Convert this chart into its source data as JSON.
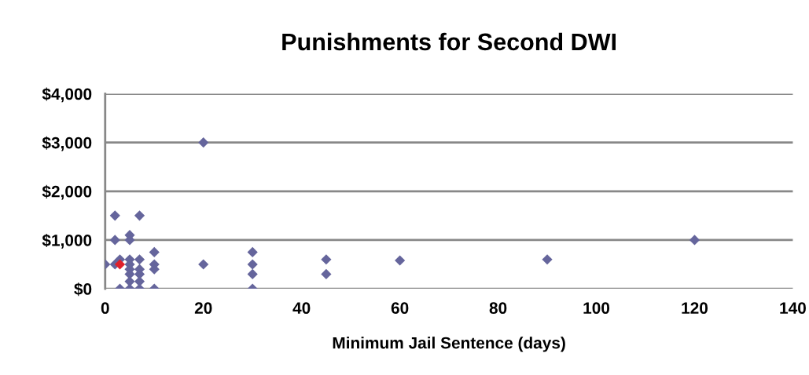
{
  "chart_data": {
    "type": "scatter",
    "title": "Punishments for Second DWI",
    "xlabel": "Minimum Jail Sentence (days)",
    "xlim": [
      0,
      140
    ],
    "xticks": [
      0,
      20,
      40,
      60,
      80,
      100,
      120,
      140
    ],
    "ylim": [
      0,
      4000
    ],
    "yticks": [
      {
        "value": 0,
        "label": "$0"
      },
      {
        "value": 1000,
        "label": "$1,000"
      },
      {
        "value": 2000,
        "label": "$2,000"
      },
      {
        "value": 3000,
        "label": "$3,000"
      },
      {
        "value": 4000,
        "label": "$4,000"
      }
    ],
    "grid": "y",
    "marker": "diamond",
    "legend": false,
    "series": [
      {
        "color": "#65659c",
        "x": [
          2,
          7,
          2,
          5,
          5,
          0,
          2,
          3,
          3,
          5,
          5,
          5,
          5,
          5,
          5,
          7,
          7,
          7,
          7,
          7,
          10,
          10,
          10,
          10,
          20,
          20,
          30,
          30,
          30,
          30,
          45,
          45,
          60,
          90,
          120
        ],
        "values": [
          1500,
          1500,
          1000,
          1100,
          1000,
          500,
          500,
          600,
          0,
          600,
          500,
          400,
          300,
          150,
          0,
          600,
          400,
          300,
          150,
          0,
          750,
          500,
          400,
          0,
          3000,
          500,
          750,
          500,
          300,
          0,
          600,
          300,
          580,
          600,
          1000
        ]
      },
      {
        "color": "#e0202a",
        "x": [
          3
        ],
        "values": [
          500
        ]
      }
    ]
  }
}
